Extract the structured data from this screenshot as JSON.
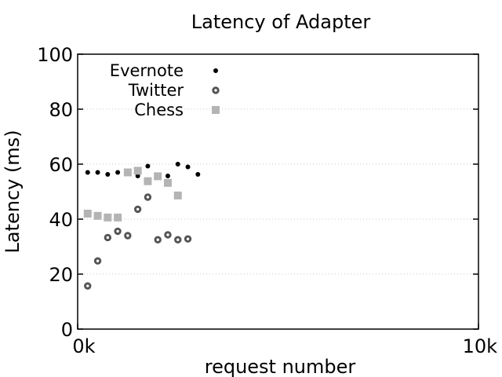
{
  "chart_data": {
    "type": "scatter",
    "title": "Latency of Adapter",
    "xlabel": "request number",
    "ylabel": "Latency (ms)",
    "xlim": [
      0,
      10000
    ],
    "ylim": [
      0,
      100
    ],
    "x_ticks": [
      {
        "value": 0,
        "label": "0k"
      },
      {
        "value": 10000,
        "label": "10k"
      }
    ],
    "y_ticks": [
      {
        "value": 0,
        "label": "0"
      },
      {
        "value": 20,
        "label": "20"
      },
      {
        "value": 40,
        "label": "40"
      },
      {
        "value": 60,
        "label": "60"
      },
      {
        "value": 80,
        "label": "80"
      },
      {
        "value": 100,
        "label": "100"
      }
    ],
    "grid": "horizontal dotted",
    "legend_position": "top-left",
    "series": [
      {
        "name": "Evernote",
        "marker": "small-dot",
        "color": "#000000",
        "x": [
          250,
          500,
          750,
          1000,
          1500,
          1750,
          2250,
          2500,
          2750,
          3000
        ],
        "y": [
          57,
          57,
          56.3,
          57,
          55.7,
          59.3,
          55.7,
          60,
          59,
          56.3
        ]
      },
      {
        "name": "Twitter",
        "marker": "ring",
        "color": "#555555",
        "x": [
          250,
          500,
          750,
          1000,
          1250,
          1500,
          1750,
          2000,
          2250,
          2500,
          2750
        ],
        "y": [
          15.7,
          24.8,
          33.3,
          35.6,
          34,
          43.6,
          48,
          32.5,
          34.3,
          32.5,
          32.8
        ]
      },
      {
        "name": "Chess",
        "marker": "square",
        "color": "#b4b4b4",
        "x": [
          250,
          500,
          750,
          1000,
          1250,
          1500,
          1750,
          2000,
          2250,
          2500
        ],
        "y": [
          42,
          41.2,
          40.6,
          40.6,
          57,
          57.6,
          53.8,
          55.6,
          53.2,
          48.6
        ]
      }
    ]
  }
}
